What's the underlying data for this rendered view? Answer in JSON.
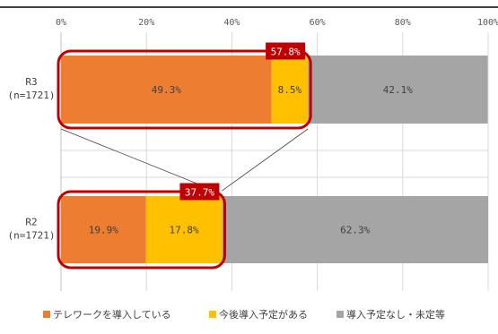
{
  "chart_data": {
    "type": "bar",
    "orientation": "horizontal",
    "stacked": true,
    "xlim": [
      0,
      100
    ],
    "x_ticks": [
      "0%",
      "20%",
      "40%",
      "60%",
      "80%",
      "100%"
    ],
    "categories": [
      {
        "label": "R3",
        "sublabel": "(n=1721)"
      },
      {
        "label": "R2",
        "sublabel": "(n=1721)"
      }
    ],
    "series": [
      {
        "name": "テレワークを導入している",
        "color": "#ED7D31",
        "values": [
          49.3,
          19.9
        ],
        "labels": [
          "49.3%",
          "19.9%"
        ]
      },
      {
        "name": "今後導入予定がある",
        "color": "#FFC000",
        "values": [
          8.5,
          17.8
        ],
        "labels": [
          "8.5%",
          "17.8%"
        ]
      },
      {
        "name": "導入予定なし・未定等",
        "color": "#A5A5A5",
        "values": [
          42.1,
          62.3
        ],
        "labels": [
          "42.1%",
          "62.3%"
        ]
      }
    ],
    "highlights": [
      {
        "category": 0,
        "value": 57.8,
        "label": "57.8%"
      },
      {
        "category": 1,
        "value": 37.7,
        "label": "37.7%"
      }
    ],
    "highlight_color": "#C00000",
    "grid": true,
    "legend_position": "bottom"
  }
}
